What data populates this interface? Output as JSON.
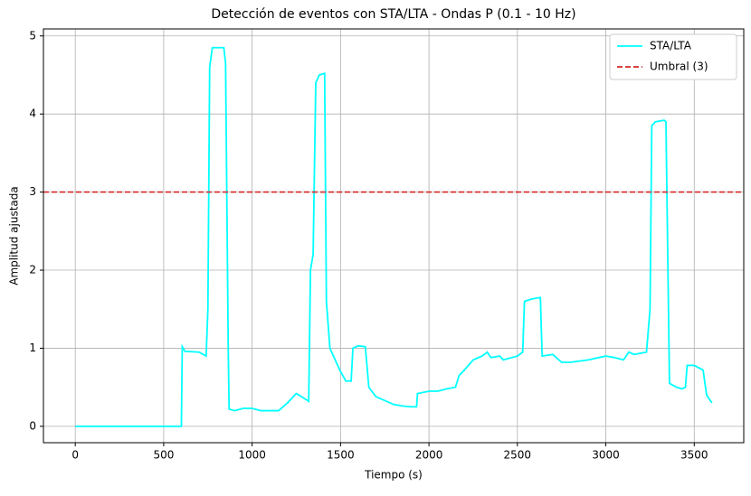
{
  "chart_data": {
    "type": "line",
    "title": "Detección de eventos con STA/LTA - Ondas P (0.1 - 10 Hz)",
    "xlabel": "Tiempo (s)",
    "ylabel": "Amplitud ajustada",
    "x": [
      0,
      600,
      605,
      620,
      700,
      740,
      750,
      760,
      775,
      840,
      850,
      865,
      870,
      900,
      950,
      1000,
      1050,
      1150,
      1200,
      1250,
      1300,
      1320,
      1330,
      1345,
      1360,
      1380,
      1410,
      1420,
      1440,
      1470,
      1500,
      1530,
      1560,
      1570,
      1600,
      1640,
      1660,
      1700,
      1750,
      1800,
      1850,
      1900,
      1930,
      1935,
      2000,
      2050,
      2100,
      2150,
      2170,
      2200,
      2250,
      2300,
      2330,
      2350,
      2400,
      2420,
      2500,
      2530,
      2540,
      2580,
      2630,
      2640,
      2700,
      2750,
      2800,
      2900,
      3000,
      3050,
      3100,
      3130,
      3160,
      3230,
      3250,
      3260,
      3280,
      3330,
      3340,
      3360,
      3400,
      3430,
      3450,
      3460,
      3500,
      3550,
      3570,
      3600
    ],
    "series": [
      {
        "name": "STA/LTA",
        "color": "#00ffff",
        "values": [
          0,
          0,
          1.02,
          0.96,
          0.95,
          0.9,
          1.5,
          4.6,
          4.85,
          4.85,
          4.65,
          1.0,
          0.22,
          0.2,
          0.23,
          0.23,
          0.2,
          0.2,
          0.3,
          0.42,
          0.35,
          0.32,
          2.0,
          2.2,
          4.4,
          4.5,
          4.52,
          1.6,
          1.0,
          0.85,
          0.7,
          0.58,
          0.58,
          1.0,
          1.03,
          1.02,
          0.5,
          0.38,
          0.33,
          0.28,
          0.26,
          0.25,
          0.25,
          0.42,
          0.45,
          0.45,
          0.48,
          0.5,
          0.65,
          0.72,
          0.85,
          0.9,
          0.95,
          0.88,
          0.9,
          0.85,
          0.9,
          0.95,
          1.6,
          1.63,
          1.65,
          0.9,
          0.92,
          0.82,
          0.82,
          0.85,
          0.9,
          0.88,
          0.85,
          0.95,
          0.92,
          0.95,
          1.5,
          3.85,
          3.9,
          3.92,
          3.9,
          0.55,
          0.5,
          0.48,
          0.5,
          0.78,
          0.78,
          0.72,
          0.4,
          0.3
        ]
      }
    ],
    "threshold": {
      "name": "Umbral (3)",
      "value": 3,
      "color": "#d62728"
    },
    "xlim": [
      -180,
      3780
    ],
    "xticks": [
      0,
      500,
      1000,
      1500,
      2000,
      2500,
      3000,
      3500
    ],
    "ylim": [
      -0.21,
      5.09
    ],
    "yticks": [
      0,
      1,
      2,
      3,
      4,
      5
    ],
    "grid": true,
    "legend": "upper right"
  }
}
